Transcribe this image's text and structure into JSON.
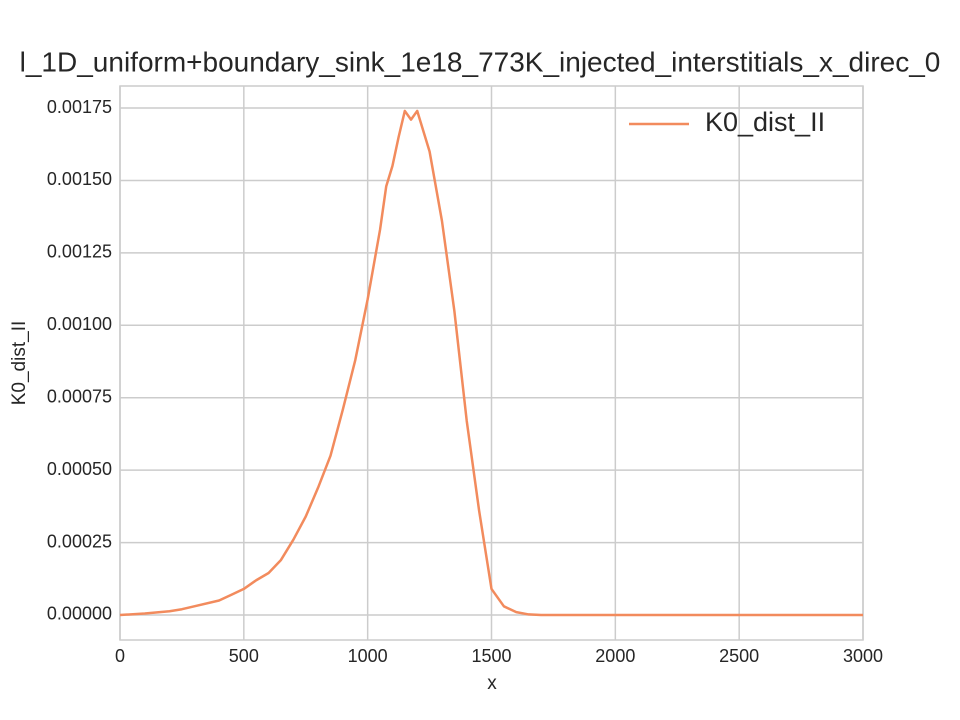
{
  "chart_data": {
    "type": "line",
    "title": "l_1D_uniform+boundary_sink_1e18_773K_injected_interstitials_x_direc_0",
    "x_label": "x",
    "y_label": "K0_dist_II",
    "xlim": [
      0,
      3000
    ],
    "xticks": [
      0,
      500,
      1000,
      1500,
      2000,
      2500,
      3000
    ],
    "ylim": [
      -8.63e-05,
      0.001826
    ],
    "yticks": [
      {
        "value": 0,
        "label": "0.00000"
      },
      {
        "value": 0.00025,
        "label": "0.00025"
      },
      {
        "value": 0.0005,
        "label": "0.00050"
      },
      {
        "value": 0.00075,
        "label": "0.00075"
      },
      {
        "value": 0.001,
        "label": "0.00100"
      },
      {
        "value": 0.00125,
        "label": "0.00125"
      },
      {
        "value": 0.0015,
        "label": "0.00150"
      },
      {
        "value": 0.00175,
        "label": "0.00175"
      }
    ],
    "grid": true,
    "legend": "upper right",
    "x": [
      0,
      100,
      200,
      250,
      300,
      400,
      450,
      500,
      550,
      600,
      650,
      700,
      750,
      800,
      850,
      900,
      950,
      1000,
      1050,
      1075,
      1100,
      1125,
      1150,
      1175,
      1200,
      1250,
      1300,
      1350,
      1400,
      1450,
      1500,
      1550,
      1600,
      1650,
      1700,
      2000,
      2500,
      3000
    ],
    "series": [
      {
        "name": "K0_dist_II",
        "color": "#f28b5d",
        "values": [
          0,
          5e-06,
          1.3e-05,
          2e-05,
          3e-05,
          5e-05,
          7e-05,
          9e-05,
          0.00012,
          0.000145,
          0.00019,
          0.00026,
          0.00034,
          0.00044,
          0.00055,
          0.00071,
          0.00088,
          0.00109,
          0.00133,
          0.00148,
          0.00155,
          0.00165,
          0.00174,
          0.00171,
          0.00174,
          0.0016,
          0.00136,
          0.00105,
          0.00067,
          0.00036,
          9e-05,
          3e-05,
          1e-05,
          2e-06,
          0,
          0,
          0,
          0
        ]
      }
    ]
  }
}
